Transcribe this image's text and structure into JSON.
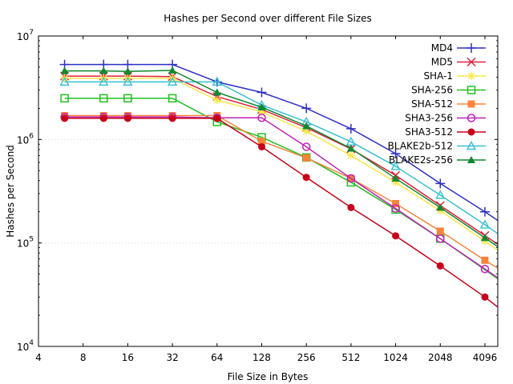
{
  "chart_data": {
    "type": "line",
    "title": "Hashes per Second over different File Sizes",
    "xlabel": "File Size in Bytes",
    "ylabel": "Hashes per Second",
    "xscale": "log2",
    "yscale": "log10",
    "xlim": [
      4,
      5000
    ],
    "ylim": [
      10000,
      10000000
    ],
    "x_ticks": [
      "4",
      "8",
      "16",
      "32",
      "64",
      "128",
      "256",
      "512",
      "1024",
      "2048",
      "4096"
    ],
    "y_ticks": [
      {
        "base": "10",
        "exp": "4"
      },
      {
        "base": "10",
        "exp": "5"
      },
      {
        "base": "10",
        "exp": "6"
      },
      {
        "base": "10",
        "exp": "7"
      }
    ],
    "grid": "dotted y-major only",
    "legend_position": "top-right",
    "x": [
      6,
      11,
      16,
      32,
      64,
      128,
      256,
      512,
      1024,
      2048,
      4096,
      5000
    ],
    "series": [
      {
        "name": "MD4",
        "color": "#3030c8",
        "marker": "plus",
        "markers_shown_to": 4096,
        "values": [
          5300000,
          5300000,
          5300000,
          5300000,
          3600000,
          2850000,
          2000000,
          1270000,
          730000,
          375000,
          200000,
          165000
        ]
      },
      {
        "name": "MD5",
        "color": "#e0203c",
        "marker": "x",
        "markers_shown_to": 4096,
        "values": [
          4100000,
          4100000,
          4100000,
          4050000,
          2600000,
          1950000,
          1300000,
          810000,
          450000,
          230000,
          118000,
          97000
        ]
      },
      {
        "name": "SHA-1",
        "color": "#f8e848",
        "marker": "star",
        "markers_shown_to": 4096,
        "values": [
          3900000,
          3900000,
          3900000,
          3900000,
          2400000,
          1850000,
          1200000,
          700000,
          385000,
          205000,
          104000,
          85000
        ]
      },
      {
        "name": "SHA-256",
        "color": "#20c020",
        "marker": "square-open",
        "markers_shown_to": 2048,
        "values": [
          2500000,
          2500000,
          2500000,
          2500000,
          1480000,
          1050000,
          670000,
          385000,
          210000,
          110000,
          55000,
          45000
        ]
      },
      {
        "name": "SHA-512",
        "color": "#f8843c",
        "marker": "square",
        "markers_shown_to": 4096,
        "values": [
          1700000,
          1700000,
          1700000,
          1700000,
          1700000,
          960000,
          665000,
          420000,
          240000,
          130000,
          68000,
          57000
        ]
      },
      {
        "name": "SHA3-256",
        "color": "#c020b8",
        "marker": "circle-open",
        "markers_shown_to": 4096,
        "values": [
          1650000,
          1650000,
          1650000,
          1650000,
          1620000,
          1620000,
          850000,
          420000,
          215000,
          110000,
          56000,
          46000
        ]
      },
      {
        "name": "SHA3-512",
        "color": "#c80018",
        "marker": "circle",
        "markers_shown_to": 4096,
        "values": [
          1600000,
          1600000,
          1600000,
          1600000,
          1600000,
          850000,
          430000,
          220000,
          117000,
          60000,
          30000,
          24000
        ]
      },
      {
        "name": "BLAKE2b-512",
        "color": "#38c0d0",
        "marker": "triangle-open",
        "markers_shown_to": 4096,
        "values": [
          3600000,
          3600000,
          3600000,
          3600000,
          3600000,
          2150000,
          1480000,
          950000,
          550000,
          290000,
          150000,
          123000
        ]
      },
      {
        "name": "BLAKE2s-256",
        "color": "#108830",
        "marker": "triangle",
        "markers_shown_to": 4096,
        "values": [
          4600000,
          4600000,
          4550000,
          4650000,
          2850000,
          2050000,
          1350000,
          820000,
          420000,
          220000,
          112000,
          92000
        ]
      }
    ]
  }
}
